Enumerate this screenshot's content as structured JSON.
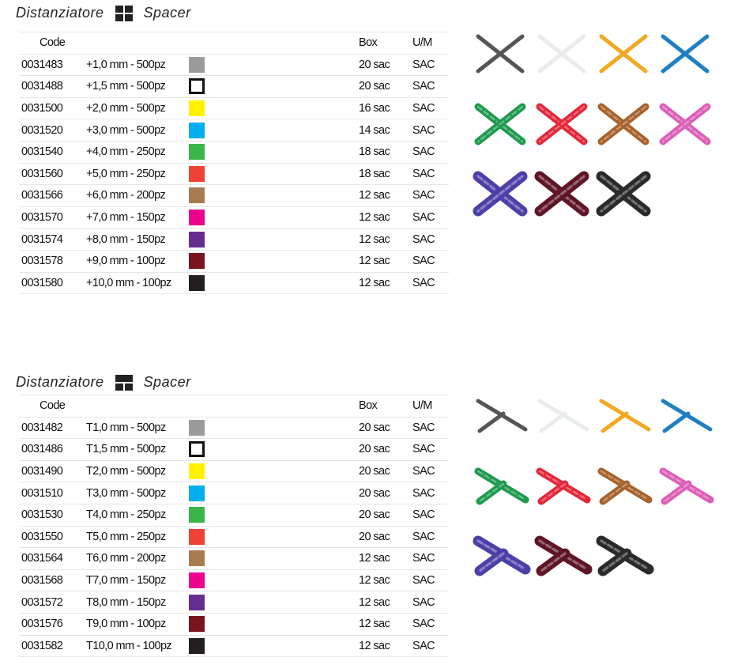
{
  "sections": [
    {
      "title_left": "Distanziatore",
      "title_right": "Spacer",
      "icon": "cross-spacer-icon",
      "headers": {
        "code": "Code",
        "box": "Box",
        "um": "U/M"
      },
      "shape": "cross",
      "rows": [
        {
          "code": "0031483",
          "desc": "+1,0 mm - 500pz",
          "color": "#9b9b9b",
          "box": "20 sac",
          "um": "SAC"
        },
        {
          "code": "0031488",
          "desc": "+1,5 mm - 500pz",
          "color": "#ffffff",
          "box": "20 sac",
          "um": "SAC"
        },
        {
          "code": "0031500",
          "desc": "+2,0 mm - 500pz",
          "color": "#fff200",
          "box": "16 sac",
          "um": "SAC"
        },
        {
          "code": "0031520",
          "desc": "+3,0 mm - 500pz",
          "color": "#00aeef",
          "box": "14 sac",
          "um": "SAC"
        },
        {
          "code": "0031540",
          "desc": "+4,0 mm - 250pz",
          "color": "#39b54a",
          "box": "18 sac",
          "um": "SAC"
        },
        {
          "code": "0031560",
          "desc": "+5,0 mm - 250pz",
          "color": "#ef4136",
          "box": "18 sac",
          "um": "SAC"
        },
        {
          "code": "0031566",
          "desc": "+6,0 mm - 200pz",
          "color": "#a97c50",
          "box": "12 sac",
          "um": "SAC"
        },
        {
          "code": "0031570",
          "desc": "+7,0 mm - 150pz",
          "color": "#ec008c",
          "box": "12 sac",
          "um": "SAC"
        },
        {
          "code": "0031574",
          "desc": "+8,0 mm - 150pz",
          "color": "#662d91",
          "box": "12 sac",
          "um": "SAC"
        },
        {
          "code": "0031578",
          "desc": "+9,0 mm - 100pz",
          "color": "#7a1420",
          "box": "12 sac",
          "um": "SAC"
        },
        {
          "code": "0031580",
          "desc": "+10,0 mm - 100pz",
          "color": "#231f20",
          "box": "12 sac",
          "um": "SAC"
        }
      ]
    },
    {
      "title_left": "Distanziatore",
      "title_right": "Spacer",
      "icon": "t-spacer-icon",
      "headers": {
        "code": "Code",
        "box": "Box",
        "um": "U/M"
      },
      "shape": "tee",
      "rows": [
        {
          "code": "0031482",
          "desc": "T1,0 mm - 500pz",
          "color": "#9b9b9b",
          "box": "20 sac",
          "um": "SAC"
        },
        {
          "code": "0031486",
          "desc": "T1,5 mm - 500pz",
          "color": "#ffffff",
          "box": "20 sac",
          "um": "SAC"
        },
        {
          "code": "0031490",
          "desc": "T2,0 mm - 500pz",
          "color": "#fff200",
          "box": "20 sac",
          "um": "SAC"
        },
        {
          "code": "0031510",
          "desc": "T3,0 mm - 500pz",
          "color": "#00aeef",
          "box": "20 sac",
          "um": "SAC"
        },
        {
          "code": "0031530",
          "desc": "T4,0 mm - 250pz",
          "color": "#39b54a",
          "box": "20 sac",
          "um": "SAC"
        },
        {
          "code": "0031550",
          "desc": "T5,0 mm - 250pz",
          "color": "#ef4136",
          "box": "20 sac",
          "um": "SAC"
        },
        {
          "code": "0031564",
          "desc": "T6,0 mm - 200pz",
          "color": "#a97c50",
          "box": "12 sac",
          "um": "SAC"
        },
        {
          "code": "0031568",
          "desc": "T7,0 mm - 150pz",
          "color": "#ec008c",
          "box": "12 sac",
          "um": "SAC"
        },
        {
          "code": "0031572",
          "desc": "T8,0 mm - 150pz",
          "color": "#662d91",
          "box": "12 sac",
          "um": "SAC"
        },
        {
          "code": "0031576",
          "desc": "T9,0 mm - 100pz",
          "color": "#7a1420",
          "box": "12 sac",
          "um": "SAC"
        },
        {
          "code": "0031582",
          "desc": "T10,0 mm - 100pz",
          "color": "#231f20",
          "box": "12 sac",
          "um": "SAC"
        }
      ]
    }
  ],
  "spacer_colors": [
    "#555555",
    "#e8ecee",
    "#f2a922",
    "#1f7fc4",
    "#1f9a4f",
    "#e2283a",
    "#a8622c",
    "#dd5fb8",
    "#4b3fa8",
    "#5e1525",
    "#2a2a2a"
  ]
}
